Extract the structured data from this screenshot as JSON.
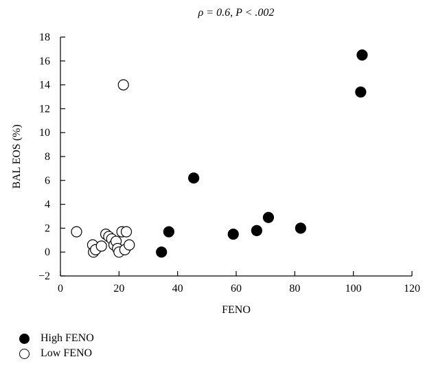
{
  "chart_data": {
    "type": "scatter",
    "title": "ρ = 0.6, P < .002",
    "xlabel": "FENO",
    "ylabel": "BAL EOS (%)",
    "xlim": [
      0,
      120
    ],
    "ylim": [
      -2,
      18
    ],
    "xticks": [
      0,
      20,
      40,
      60,
      80,
      100,
      120
    ],
    "yticks": [
      -2,
      0,
      2,
      4,
      6,
      8,
      10,
      12,
      14,
      16,
      18
    ],
    "grid": false,
    "legend_position": "bottom-left",
    "series": [
      {
        "name": "High FENO",
        "marker": "filled-circle",
        "color": "#000000",
        "points": [
          [
            34.5,
            0.0
          ],
          [
            37,
            1.7
          ],
          [
            45.5,
            6.2
          ],
          [
            59,
            1.5
          ],
          [
            67,
            1.8
          ],
          [
            71,
            2.9
          ],
          [
            82,
            2.0
          ],
          [
            102.5,
            13.4
          ],
          [
            103,
            16.5
          ]
        ]
      },
      {
        "name": "Low FENO",
        "marker": "open-circle",
        "color": "#000000",
        "points": [
          [
            5.5,
            1.7
          ],
          [
            11,
            0.6
          ],
          [
            11.3,
            0.0
          ],
          [
            12,
            0.2
          ],
          [
            14,
            0.5
          ],
          [
            15.5,
            1.5
          ],
          [
            16.5,
            1.3
          ],
          [
            17.5,
            1.1
          ],
          [
            18.3,
            0.6
          ],
          [
            19,
            0.9
          ],
          [
            19.5,
            0.3
          ],
          [
            20,
            0.0
          ],
          [
            21,
            1.7
          ],
          [
            21.5,
            14.0
          ],
          [
            22,
            0.2
          ],
          [
            22.5,
            1.7
          ],
          [
            23.5,
            0.6
          ]
        ]
      }
    ]
  }
}
